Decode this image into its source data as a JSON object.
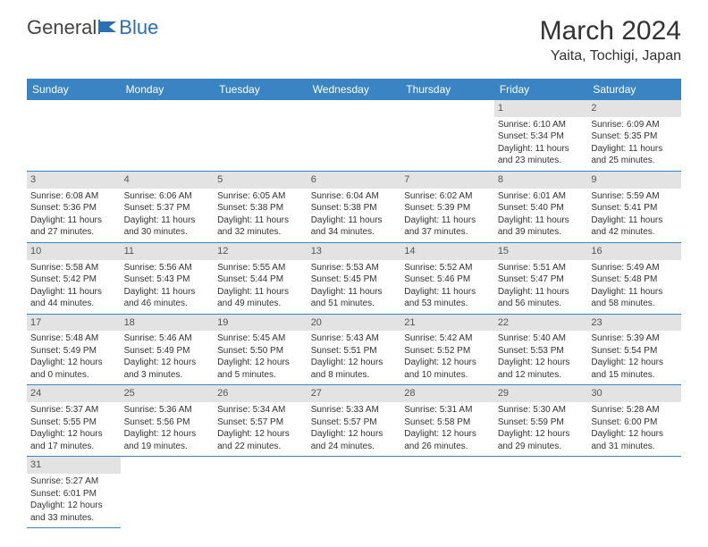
{
  "brand": {
    "part1": "General",
    "part2": "Blue"
  },
  "title": "March 2024",
  "location": "Yaita, Tochigi, Japan",
  "colors": {
    "header_bg": "#3a84c4",
    "header_text": "#ffffff",
    "daynum_bg": "#e3e3e3",
    "row_divider": "#3a84c4",
    "logo_blue": "#2c6fb3"
  },
  "weekdays": [
    "Sunday",
    "Monday",
    "Tuesday",
    "Wednesday",
    "Thursday",
    "Friday",
    "Saturday"
  ],
  "weeks": [
    [
      null,
      null,
      null,
      null,
      null,
      {
        "n": "1",
        "sr": "Sunrise: 6:10 AM",
        "ss": "Sunset: 5:34 PM",
        "dl1": "Daylight: 11 hours",
        "dl2": "and 23 minutes."
      },
      {
        "n": "2",
        "sr": "Sunrise: 6:09 AM",
        "ss": "Sunset: 5:35 PM",
        "dl1": "Daylight: 11 hours",
        "dl2": "and 25 minutes."
      }
    ],
    [
      {
        "n": "3",
        "sr": "Sunrise: 6:08 AM",
        "ss": "Sunset: 5:36 PM",
        "dl1": "Daylight: 11 hours",
        "dl2": "and 27 minutes."
      },
      {
        "n": "4",
        "sr": "Sunrise: 6:06 AM",
        "ss": "Sunset: 5:37 PM",
        "dl1": "Daylight: 11 hours",
        "dl2": "and 30 minutes."
      },
      {
        "n": "5",
        "sr": "Sunrise: 6:05 AM",
        "ss": "Sunset: 5:38 PM",
        "dl1": "Daylight: 11 hours",
        "dl2": "and 32 minutes."
      },
      {
        "n": "6",
        "sr": "Sunrise: 6:04 AM",
        "ss": "Sunset: 5:38 PM",
        "dl1": "Daylight: 11 hours",
        "dl2": "and 34 minutes."
      },
      {
        "n": "7",
        "sr": "Sunrise: 6:02 AM",
        "ss": "Sunset: 5:39 PM",
        "dl1": "Daylight: 11 hours",
        "dl2": "and 37 minutes."
      },
      {
        "n": "8",
        "sr": "Sunrise: 6:01 AM",
        "ss": "Sunset: 5:40 PM",
        "dl1": "Daylight: 11 hours",
        "dl2": "and 39 minutes."
      },
      {
        "n": "9",
        "sr": "Sunrise: 5:59 AM",
        "ss": "Sunset: 5:41 PM",
        "dl1": "Daylight: 11 hours",
        "dl2": "and 42 minutes."
      }
    ],
    [
      {
        "n": "10",
        "sr": "Sunrise: 5:58 AM",
        "ss": "Sunset: 5:42 PM",
        "dl1": "Daylight: 11 hours",
        "dl2": "and 44 minutes."
      },
      {
        "n": "11",
        "sr": "Sunrise: 5:56 AM",
        "ss": "Sunset: 5:43 PM",
        "dl1": "Daylight: 11 hours",
        "dl2": "and 46 minutes."
      },
      {
        "n": "12",
        "sr": "Sunrise: 5:55 AM",
        "ss": "Sunset: 5:44 PM",
        "dl1": "Daylight: 11 hours",
        "dl2": "and 49 minutes."
      },
      {
        "n": "13",
        "sr": "Sunrise: 5:53 AM",
        "ss": "Sunset: 5:45 PM",
        "dl1": "Daylight: 11 hours",
        "dl2": "and 51 minutes."
      },
      {
        "n": "14",
        "sr": "Sunrise: 5:52 AM",
        "ss": "Sunset: 5:46 PM",
        "dl1": "Daylight: 11 hours",
        "dl2": "and 53 minutes."
      },
      {
        "n": "15",
        "sr": "Sunrise: 5:51 AM",
        "ss": "Sunset: 5:47 PM",
        "dl1": "Daylight: 11 hours",
        "dl2": "and 56 minutes."
      },
      {
        "n": "16",
        "sr": "Sunrise: 5:49 AM",
        "ss": "Sunset: 5:48 PM",
        "dl1": "Daylight: 11 hours",
        "dl2": "and 58 minutes."
      }
    ],
    [
      {
        "n": "17",
        "sr": "Sunrise: 5:48 AM",
        "ss": "Sunset: 5:49 PM",
        "dl1": "Daylight: 12 hours",
        "dl2": "and 0 minutes."
      },
      {
        "n": "18",
        "sr": "Sunrise: 5:46 AM",
        "ss": "Sunset: 5:49 PM",
        "dl1": "Daylight: 12 hours",
        "dl2": "and 3 minutes."
      },
      {
        "n": "19",
        "sr": "Sunrise: 5:45 AM",
        "ss": "Sunset: 5:50 PM",
        "dl1": "Daylight: 12 hours",
        "dl2": "and 5 minutes."
      },
      {
        "n": "20",
        "sr": "Sunrise: 5:43 AM",
        "ss": "Sunset: 5:51 PM",
        "dl1": "Daylight: 12 hours",
        "dl2": "and 8 minutes."
      },
      {
        "n": "21",
        "sr": "Sunrise: 5:42 AM",
        "ss": "Sunset: 5:52 PM",
        "dl1": "Daylight: 12 hours",
        "dl2": "and 10 minutes."
      },
      {
        "n": "22",
        "sr": "Sunrise: 5:40 AM",
        "ss": "Sunset: 5:53 PM",
        "dl1": "Daylight: 12 hours",
        "dl2": "and 12 minutes."
      },
      {
        "n": "23",
        "sr": "Sunrise: 5:39 AM",
        "ss": "Sunset: 5:54 PM",
        "dl1": "Daylight: 12 hours",
        "dl2": "and 15 minutes."
      }
    ],
    [
      {
        "n": "24",
        "sr": "Sunrise: 5:37 AM",
        "ss": "Sunset: 5:55 PM",
        "dl1": "Daylight: 12 hours",
        "dl2": "and 17 minutes."
      },
      {
        "n": "25",
        "sr": "Sunrise: 5:36 AM",
        "ss": "Sunset: 5:56 PM",
        "dl1": "Daylight: 12 hours",
        "dl2": "and 19 minutes."
      },
      {
        "n": "26",
        "sr": "Sunrise: 5:34 AM",
        "ss": "Sunset: 5:57 PM",
        "dl1": "Daylight: 12 hours",
        "dl2": "and 22 minutes."
      },
      {
        "n": "27",
        "sr": "Sunrise: 5:33 AM",
        "ss": "Sunset: 5:57 PM",
        "dl1": "Daylight: 12 hours",
        "dl2": "and 24 minutes."
      },
      {
        "n": "28",
        "sr": "Sunrise: 5:31 AM",
        "ss": "Sunset: 5:58 PM",
        "dl1": "Daylight: 12 hours",
        "dl2": "and 26 minutes."
      },
      {
        "n": "29",
        "sr": "Sunrise: 5:30 AM",
        "ss": "Sunset: 5:59 PM",
        "dl1": "Daylight: 12 hours",
        "dl2": "and 29 minutes."
      },
      {
        "n": "30",
        "sr": "Sunrise: 5:28 AM",
        "ss": "Sunset: 6:00 PM",
        "dl1": "Daylight: 12 hours",
        "dl2": "and 31 minutes."
      }
    ],
    [
      {
        "n": "31",
        "sr": "Sunrise: 5:27 AM",
        "ss": "Sunset: 6:01 PM",
        "dl1": "Daylight: 12 hours",
        "dl2": "and 33 minutes."
      },
      null,
      null,
      null,
      null,
      null,
      null
    ]
  ]
}
